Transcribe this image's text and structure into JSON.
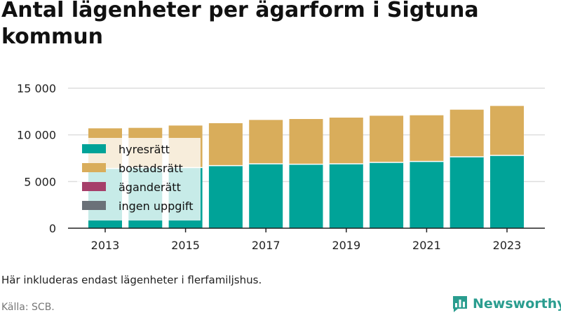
{
  "title": "Antal lägenheter per ägarform i Sigtuna kommun",
  "footnote": "Här inkluderas endast lägenheter i flerfamiljshus.",
  "source": "Källa: SCB.",
  "brand": {
    "name": "Newsworthy",
    "icon": "bar-chart-logo-icon",
    "color": "#2a9d8f"
  },
  "chart_data": {
    "type": "bar",
    "stacked": true,
    "categories": [
      "2013",
      "2014",
      "2015",
      "2016",
      "2017",
      "2018",
      "2019",
      "2020",
      "2021",
      "2022",
      "2023"
    ],
    "x_tick_labels": [
      "2013",
      "2015",
      "2017",
      "2019",
      "2021",
      "2023"
    ],
    "y_tick_labels": [
      "0",
      "5 000",
      "10 000",
      "15 000"
    ],
    "y_ticks": [
      0,
      5000,
      10000,
      15000
    ],
    "ylim": [
      0,
      15000
    ],
    "grid": true,
    "legend_position": "overlay-left",
    "series": [
      {
        "name": "hyresrätt",
        "color": "#00a398",
        "values": [
          6400,
          6500,
          6500,
          6700,
          6900,
          6850,
          6900,
          7050,
          7150,
          7650,
          7800
        ]
      },
      {
        "name": "bostadsrätt",
        "color": "#d9ad5b",
        "values": [
          4300,
          4250,
          4500,
          4550,
          4700,
          4850,
          4950,
          5000,
          4950,
          5050,
          5300
        ]
      },
      {
        "name": "äganderätt",
        "color": "#a63f6a",
        "values": [
          0,
          0,
          0,
          0,
          0,
          0,
          0,
          0,
          0,
          0,
          0
        ]
      },
      {
        "name": "ingen uppgift",
        "color": "#6b7178",
        "values": [
          0,
          0,
          0,
          0,
          0,
          0,
          0,
          0,
          0,
          0,
          0
        ]
      }
    ]
  }
}
